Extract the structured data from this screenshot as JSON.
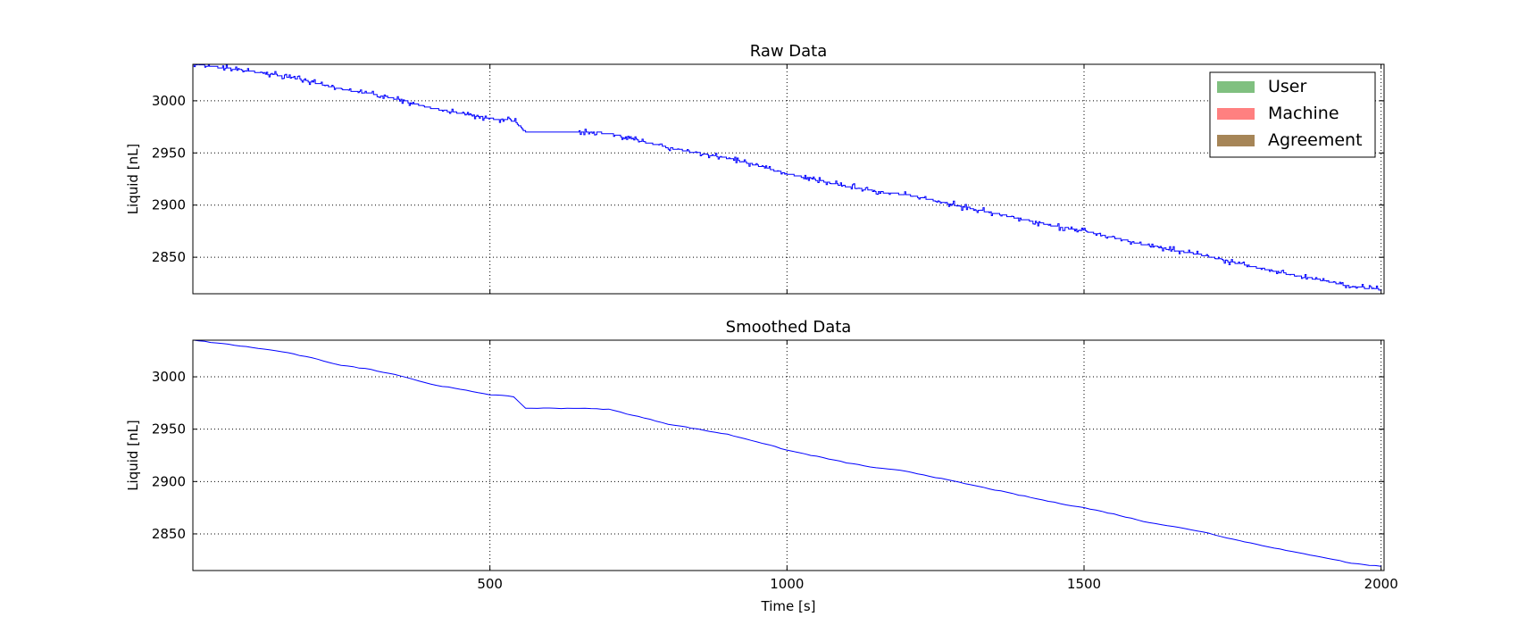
{
  "chart_data": [
    {
      "type": "line",
      "title": "Raw Data",
      "xlabel": "",
      "ylabel": "Liquid [nL]",
      "xlim": [
        0,
        2005
      ],
      "ylim": [
        2815,
        3035
      ],
      "xticks": [
        500,
        1000,
        1500,
        2000
      ],
      "xtick_labels": [
        "",
        "",
        "",
        ""
      ],
      "yticks": [
        3000,
        2950,
        2900,
        2850
      ],
      "ytick_labels": [
        "3000",
        "2950",
        "2900",
        "2850"
      ],
      "grid": true,
      "legend": {
        "placement": "top-right",
        "entries": [
          {
            "label": "User",
            "color": "#80c080"
          },
          {
            "label": "Machine",
            "color": "#ff8080"
          },
          {
            "label": "Agreement",
            "color": "#a68557"
          }
        ]
      },
      "series": [
        {
          "color": "#0000ff",
          "noisy": true,
          "x": [
            0,
            30,
            60,
            100,
            150,
            200,
            250,
            300,
            350,
            400,
            450,
            500,
            540,
            560,
            600,
            650,
            700,
            750,
            800,
            850,
            900,
            950,
            1000,
            1050,
            1100,
            1150,
            1200,
            1250,
            1300,
            1350,
            1400,
            1450,
            1500,
            1550,
            1600,
            1650,
            1700,
            1750,
            1800,
            1850,
            1900,
            1950,
            2000
          ],
          "y": [
            3035,
            3033,
            3031,
            3028,
            3024,
            3018,
            3011,
            3007,
            3001,
            2993,
            2988,
            2983,
            2981,
            2970,
            2970,
            2970,
            2969,
            2962,
            2955,
            2950,
            2945,
            2938,
            2930,
            2924,
            2918,
            2913,
            2910,
            2904,
            2898,
            2892,
            2886,
            2880,
            2875,
            2869,
            2862,
            2857,
            2852,
            2845,
            2839,
            2833,
            2828,
            2822,
            2819
          ]
        }
      ]
    },
    {
      "type": "line",
      "title": "Smoothed Data",
      "xlabel": "Time [s]",
      "ylabel": "Liquid [nL]",
      "xlim": [
        0,
        2005
      ],
      "ylim": [
        2815,
        3035
      ],
      "xticks": [
        500,
        1000,
        1500,
        2000
      ],
      "xtick_labels": [
        "500",
        "1000",
        "1500",
        "2000"
      ],
      "yticks": [
        3000,
        2950,
        2900,
        2850
      ],
      "ytick_labels": [
        "3000",
        "2950",
        "2900",
        "2850"
      ],
      "grid": true,
      "series": [
        {
          "color": "#0000ff",
          "noisy": false,
          "x": [
            0,
            30,
            60,
            100,
            150,
            200,
            250,
            300,
            350,
            400,
            450,
            500,
            540,
            560,
            600,
            650,
            700,
            750,
            800,
            850,
            900,
            950,
            1000,
            1050,
            1100,
            1150,
            1200,
            1250,
            1300,
            1350,
            1400,
            1450,
            1500,
            1550,
            1600,
            1650,
            1700,
            1750,
            1800,
            1850,
            1900,
            1950,
            2000
          ],
          "y": [
            3035,
            3033,
            3031,
            3028,
            3024,
            3018,
            3011,
            3007,
            3001,
            2993,
            2988,
            2983,
            2981,
            2970,
            2970,
            2970,
            2969,
            2962,
            2955,
            2950,
            2945,
            2938,
            2930,
            2924,
            2918,
            2913,
            2910,
            2904,
            2898,
            2892,
            2886,
            2880,
            2875,
            2869,
            2862,
            2857,
            2852,
            2845,
            2839,
            2833,
            2828,
            2822,
            2819
          ]
        }
      ]
    }
  ]
}
